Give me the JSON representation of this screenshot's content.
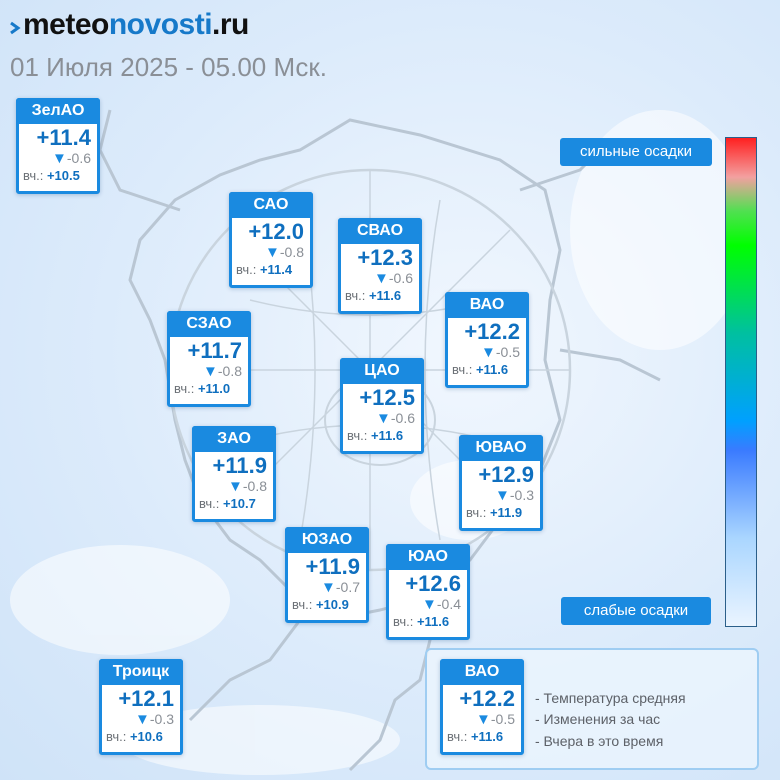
{
  "header": {
    "logo_part1": "meteo",
    "logo_part2": "novosti",
    "logo_part3": ".ru",
    "subtitle": "01 Июля 2025 - 05.00 Мск."
  },
  "colors": {
    "accent": "#1a8ae0",
    "temp_text": "#0f6fbf",
    "muted_text": "#8a8f96",
    "map_lines": "#b9c6d3"
  },
  "districts": [
    {
      "name": "ЗелАО",
      "temp": "+11.4",
      "delta": "-0.6",
      "yesterday_label": "вч.:",
      "yesterday": "+10.5"
    },
    {
      "name": "САО",
      "temp": "+12.0",
      "delta": "-0.8",
      "yesterday_label": "вч.:",
      "yesterday": "+11.4"
    },
    {
      "name": "СВАО",
      "temp": "+12.3",
      "delta": "-0.6",
      "yesterday_label": "вч.:",
      "yesterday": "+11.6"
    },
    {
      "name": "ВАО",
      "temp": "+12.2",
      "delta": "-0.5",
      "yesterday_label": "вч.:",
      "yesterday": "+11.6"
    },
    {
      "name": "СЗАО",
      "temp": "+11.7",
      "delta": "-0.8",
      "yesterday_label": "вч.:",
      "yesterday": "+11.0"
    },
    {
      "name": "ЦАО",
      "temp": "+12.5",
      "delta": "-0.6",
      "yesterday_label": "вч.:",
      "yesterday": "+11.6"
    },
    {
      "name": "ЗАО",
      "temp": "+11.9",
      "delta": "-0.8",
      "yesterday_label": "вч.:",
      "yesterday": "+10.7"
    },
    {
      "name": "ЮВАО",
      "temp": "+12.9",
      "delta": "-0.3",
      "yesterday_label": "вч.:",
      "yesterday": "+11.9"
    },
    {
      "name": "ЮЗАО",
      "temp": "+11.9",
      "delta": "-0.7",
      "yesterday_label": "вч.:",
      "yesterday": "+10.9"
    },
    {
      "name": "ЮАО",
      "temp": "+12.6",
      "delta": "-0.4",
      "yesterday_label": "вч.:",
      "yesterday": "+11.6"
    },
    {
      "name": "Троицк",
      "temp": "+12.1",
      "delta": "-0.3",
      "yesterday_label": "вч.:",
      "yesterday": "+10.6"
    }
  ],
  "legend": {
    "sample": {
      "name": "ВАО",
      "temp": "+12.2",
      "delta": "-0.5",
      "yesterday_label": "вч.:",
      "yesterday": "+11.6"
    },
    "line1": "- Температура средняя",
    "line2": "- Изменения за час",
    "line3": "- Вчера в это время"
  },
  "precip_scale": {
    "top_label": "сильные осадки",
    "bottom_label": "слабые осадки",
    "colors_top_to_bottom": [
      "#ff2020",
      "#f3a0a0",
      "#00ff00",
      "#00c0a0",
      "#00a0ff",
      "#3a7bff",
      "#eaf4ff"
    ]
  },
  "map_icons": [
    "moscow-outline-map"
  ]
}
